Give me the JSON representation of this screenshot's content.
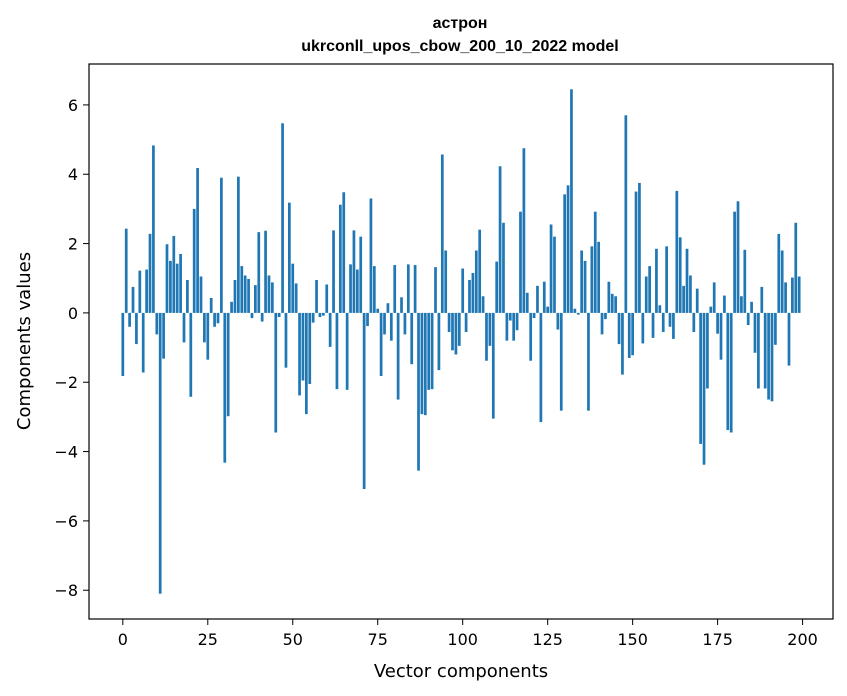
{
  "chart_data": {
    "type": "bar",
    "title": "астрон",
    "subtitle": "ukrconll_upos_cbow_200_10_2022 model",
    "xlabel": "Vector components",
    "ylabel": "Components values",
    "xlim": [
      -9.95,
      208.95
    ],
    "ylim": [
      -8.83,
      7.18
    ],
    "xticks": [
      0,
      25,
      50,
      75,
      100,
      125,
      150,
      175,
      200
    ],
    "yticks": [
      -8,
      -6,
      -4,
      -2,
      0,
      2,
      4,
      6
    ],
    "ytick_labels": [
      "−8",
      "−6",
      "−4",
      "−2",
      "0",
      "2",
      "4",
      "6"
    ],
    "bar_color": "#1f77b4",
    "grid": false,
    "x": [
      0,
      1,
      2,
      3,
      4,
      5,
      6,
      7,
      8,
      9,
      10,
      11,
      12,
      13,
      14,
      15,
      16,
      17,
      18,
      19,
      20,
      21,
      22,
      23,
      24,
      25,
      26,
      27,
      28,
      29,
      30,
      31,
      32,
      33,
      34,
      35,
      36,
      37,
      38,
      39,
      40,
      41,
      42,
      43,
      44,
      45,
      46,
      47,
      48,
      49,
      50,
      51,
      52,
      53,
      54,
      55,
      56,
      57,
      58,
      59,
      60,
      61,
      62,
      63,
      64,
      65,
      66,
      67,
      68,
      69,
      70,
      71,
      72,
      73,
      74,
      75,
      76,
      77,
      78,
      79,
      80,
      81,
      82,
      83,
      84,
      85,
      86,
      87,
      88,
      89,
      90,
      91,
      92,
      93,
      94,
      95,
      96,
      97,
      98,
      99,
      100,
      101,
      102,
      103,
      104,
      105,
      106,
      107,
      108,
      109,
      110,
      111,
      112,
      113,
      114,
      115,
      116,
      117,
      118,
      119,
      120,
      121,
      122,
      123,
      124,
      125,
      126,
      127,
      128,
      129,
      130,
      131,
      132,
      133,
      134,
      135,
      136,
      137,
      138,
      139,
      140,
      141,
      142,
      143,
      144,
      145,
      146,
      147,
      148,
      149,
      150,
      151,
      152,
      153,
      154,
      155,
      156,
      157,
      158,
      159,
      160,
      161,
      162,
      163,
      164,
      165,
      166,
      167,
      168,
      169,
      170,
      171,
      172,
      173,
      174,
      175,
      176,
      177,
      178,
      179,
      180,
      181,
      182,
      183,
      184,
      185,
      186,
      187,
      188,
      189,
      190,
      191,
      192,
      193,
      194,
      195,
      196,
      197,
      198,
      199
    ],
    "values": [
      -1.82,
      2.43,
      -0.4,
      0.75,
      -0.9,
      1.22,
      -1.72,
      1.25,
      2.28,
      4.83,
      -0.62,
      -8.1,
      -1.32,
      1.98,
      1.5,
      2.22,
      1.42,
      1.7,
      -0.85,
      0.95,
      -2.42,
      3.0,
      4.18,
      1.05,
      -0.85,
      -1.35,
      0.43,
      -0.4,
      -0.3,
      3.9,
      -4.32,
      -2.98,
      0.32,
      0.95,
      3.93,
      1.35,
      1.08,
      0.98,
      -0.15,
      0.8,
      2.33,
      -0.25,
      2.37,
      1.08,
      0.88,
      -3.45,
      -0.12,
      5.47,
      -1.58,
      3.18,
      1.42,
      0.85,
      -2.38,
      -1.95,
      -2.92,
      -2.05,
      -0.28,
      0.95,
      -0.12,
      -0.08,
      0.82,
      -0.98,
      2.38,
      -2.2,
      3.12,
      3.48,
      -2.22,
      1.4,
      2.38,
      1.25,
      2.2,
      -5.08,
      -0.38,
      3.3,
      1.35,
      0.12,
      -1.82,
      -0.62,
      0.28,
      -0.8,
      1.38,
      -2.5,
      0.45,
      -0.62,
      1.4,
      -1.48,
      1.38,
      -4.55,
      -2.92,
      -2.95,
      -2.22,
      -2.2,
      1.32,
      -1.65,
      4.57,
      1.8,
      -0.55,
      -1.08,
      -1.2,
      -0.95,
      1.28,
      -0.55,
      0.95,
      1.15,
      1.8,
      2.4,
      0.48,
      -1.38,
      -0.95,
      -3.05,
      1.48,
      4.23,
      2.6,
      -0.8,
      -0.22,
      -0.8,
      -0.5,
      2.92,
      4.75,
      0.58,
      -1.38,
      -0.15,
      0.78,
      -3.15,
      0.9,
      0.18,
      2.55,
      2.2,
      -0.48,
      -2.82,
      3.42,
      3.68,
      6.45,
      0.12,
      -0.05,
      1.8,
      1.5,
      -2.82,
      1.92,
      2.92,
      2.05,
      -0.62,
      -0.18,
      0.9,
      0.55,
      0.48,
      -0.9,
      -1.78,
      5.7,
      -1.3,
      -1.22,
      3.5,
      3.75,
      -0.88,
      1.05,
      1.35,
      -0.72,
      1.85,
      0.22,
      -0.55,
      1.92,
      -0.4,
      -0.75,
      3.52,
      2.18,
      0.78,
      1.85,
      1.08,
      -0.55,
      0.7,
      -3.78,
      -4.38,
      -2.18,
      0.18,
      0.88,
      -0.6,
      -1.35,
      0.5,
      -3.38,
      -3.45,
      2.92,
      3.22,
      0.48,
      1.82,
      -0.35,
      0.32,
      -1.15,
      -2.18,
      0.75,
      -2.18,
      -2.5,
      -2.55,
      -0.92,
      2.28,
      1.8,
      0.88,
      -1.52,
      1.02,
      2.6,
      1.05
    ]
  }
}
